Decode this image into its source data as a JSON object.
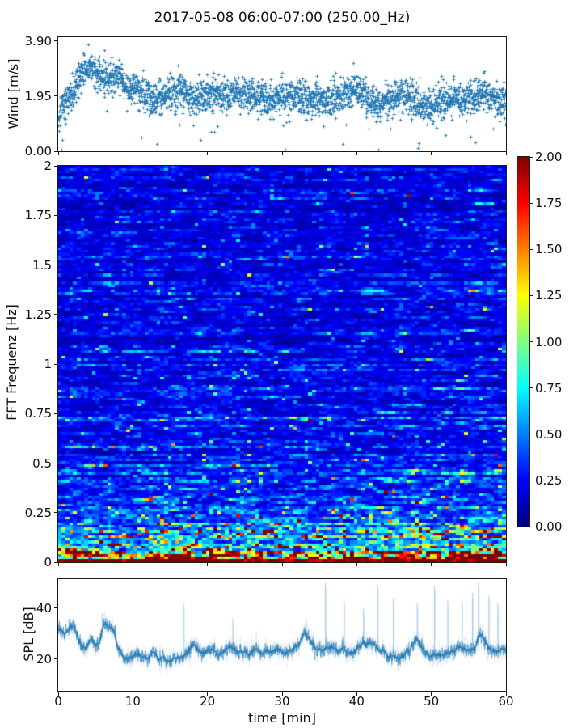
{
  "figure": {
    "title": "2017-05-08 06:00-07:00 (250.00_Hz)",
    "xlabel": "time [min]",
    "x_tick_labels": [
      "0",
      "10",
      "20",
      "30",
      "40",
      "50",
      "60"
    ],
    "x_tick_values": [
      0,
      10,
      20,
      30,
      40,
      50,
      60
    ],
    "background": "#ffffff",
    "series_color": "#1f77b4",
    "axis_color": "#1a1a1a"
  },
  "wind_panel": {
    "ylabel": "Wind [m/s]",
    "y_tick_labels": [
      "3.90",
      "1.95",
      "0.00"
    ],
    "y_tick_values": [
      3.9,
      1.95,
      0.0
    ],
    "ylim": [
      0,
      4.04
    ]
  },
  "spec_panel": {
    "ylabel": "FFT Frequenz [Hz]",
    "y_tick_labels": [
      "2",
      "1.75",
      "1.5",
      "1.25",
      "1",
      "0.75",
      "0.5",
      "0.25",
      "0"
    ],
    "y_tick_values": [
      2,
      1.75,
      1.5,
      1.25,
      1,
      0.75,
      0.5,
      0.25,
      0
    ],
    "ylim": [
      0,
      2
    ]
  },
  "spl_panel": {
    "ylabel": "SPL [dB]",
    "y_tick_labels": [
      "40",
      "20"
    ],
    "y_tick_values": [
      40,
      20
    ],
    "ylim": [
      7.6,
      51.4
    ]
  },
  "colorbar": {
    "colormap": "jet",
    "vmin": 0,
    "vmax": 2,
    "tick_labels": [
      "2.00",
      "1.75",
      "1.50",
      "1.25",
      "1.00",
      "0.75",
      "0.50",
      "0.25",
      "0.00"
    ],
    "tick_values": [
      2,
      1.75,
      1.5,
      1.25,
      1,
      0.75,
      0.5,
      0.25,
      0
    ]
  },
  "chart_data": [
    {
      "id": "wind",
      "type": "scatter",
      "marker": "plus",
      "color": "#1f77b4",
      "xlim": [
        0,
        60
      ],
      "ylim": [
        0,
        4.04
      ],
      "n_points": 2800,
      "seed": 1234567,
      "spread": 0.3,
      "outlier_prob": 0.012,
      "outlier_depth": [
        0.7,
        1.8
      ],
      "trend": {
        "t0": 0,
        "dt": 1,
        "v": [
          1.3,
          1.7,
          2.1,
          2.7,
          3.1,
          2.8,
          2.6,
          2.5,
          2.7,
          2.3,
          2.1,
          2.2,
          2.0,
          1.8,
          2.0,
          2.1,
          2.3,
          2.1,
          1.8,
          1.9,
          2.0,
          2.1,
          2.0,
          1.9,
          2.2,
          2.0,
          1.9,
          2.0,
          1.9,
          1.8,
          2.0,
          1.9,
          2.0,
          1.9,
          1.8,
          1.9,
          1.8,
          1.9,
          2.0,
          2.1,
          2.3,
          2.0,
          1.7,
          1.6,
          1.8,
          1.9,
          2.1,
          1.9,
          1.8,
          1.6,
          1.5,
          1.7,
          1.8,
          1.9,
          1.8,
          1.9,
          2.0,
          2.1,
          1.9,
          1.8,
          1.8
        ]
      }
    },
    {
      "id": "spectrogram",
      "type": "heatmap",
      "colormap": "jet",
      "xlim": [
        0,
        60
      ],
      "ylim": [
        0,
        2
      ],
      "vmin": 0,
      "vmax": 2,
      "cols": 118,
      "rows": 150,
      "seed": 424242,
      "noise_sigma": 0.45,
      "row_sigma": 0.2,
      "ar_rho": 0.6,
      "freq_profile": {
        "f": [
          0,
          0.013,
          0.03,
          0.06,
          0.1,
          0.16,
          0.25,
          0.4,
          0.6,
          1.0,
          1.5,
          2.0
        ],
        "v": [
          2.0,
          1.8,
          1.2,
          0.85,
          0.65,
          0.5,
          0.4,
          0.3,
          0.24,
          0.2,
          0.18,
          0.17
        ]
      },
      "col_mod": {
        "t": [
          0,
          4,
          8,
          12,
          16,
          20,
          24,
          28,
          32,
          36,
          40,
          44,
          48,
          52,
          56,
          60
        ],
        "g": [
          0.9,
          0.95,
          1.0,
          1.1,
          1.25,
          1.3,
          1.2,
          1.05,
          1.1,
          0.95,
          1.05,
          1.2,
          1.25,
          1.3,
          1.35,
          1.2
        ],
        "f_weight_scale": 0.3
      },
      "streak": {
        "p_base": 0.025,
        "p_low": 0.13,
        "f_scale": 0.3,
        "boost_min": 1.7,
        "boost_max": 3.4
      },
      "bottom_band": {
        "f_below": 0.015,
        "min_v": 1.75,
        "rand_v": 0.35
      }
    },
    {
      "id": "spl",
      "type": "line",
      "color": "#1f77b4",
      "xlim": [
        0,
        60
      ],
      "ylim": [
        7.6,
        51.4
      ],
      "n_points": 3600,
      "seed": 987654,
      "jitter_sigma": 0.9,
      "ar_rho": 0.7,
      "ar_sigma": 0.9,
      "trend": {
        "t0": 0,
        "dt": 0.5,
        "v": [
          32,
          31,
          30,
          32,
          33,
          30,
          26,
          24,
          26,
          28,
          25,
          27,
          33,
          34,
          33,
          30,
          24,
          22,
          20,
          20.5,
          21,
          24,
          21,
          20.5,
          20,
          22,
          21,
          20,
          21,
          19,
          20,
          21,
          20,
          21,
          22,
          23,
          25,
          24,
          23,
          22,
          23,
          24,
          23,
          22,
          23,
          24,
          25,
          24,
          23,
          24,
          23,
          22,
          23,
          24,
          23,
          22,
          23,
          22,
          23,
          24,
          23,
          22,
          23,
          24,
          25,
          27,
          30,
          28,
          26,
          25,
          24,
          23,
          24,
          25,
          24,
          23,
          24,
          23,
          22,
          23,
          24,
          25,
          26,
          27,
          26,
          25,
          24,
          23,
          22,
          21,
          21,
          20,
          21,
          22,
          24,
          26,
          28,
          26,
          23,
          21,
          22,
          21,
          22,
          21,
          22,
          23,
          24,
          25,
          25,
          24,
          23,
          24,
          26,
          30,
          29,
          25,
          24,
          23,
          23,
          24,
          23
        ]
      },
      "spikes": [
        [
          5.9,
          38
        ],
        [
          16.8,
          42
        ],
        [
          23.4,
          36
        ],
        [
          33.2,
          37
        ],
        [
          35.8,
          50
        ],
        [
          38.3,
          44
        ],
        [
          40.9,
          40
        ],
        [
          42.8,
          49
        ],
        [
          44.9,
          44
        ],
        [
          48.1,
          42
        ],
        [
          50.4,
          49
        ],
        [
          52.2,
          43
        ],
        [
          54.1,
          44
        ],
        [
          55.5,
          46
        ],
        [
          56.3,
          50
        ],
        [
          57.7,
          45
        ],
        [
          58.9,
          42
        ]
      ]
    }
  ]
}
